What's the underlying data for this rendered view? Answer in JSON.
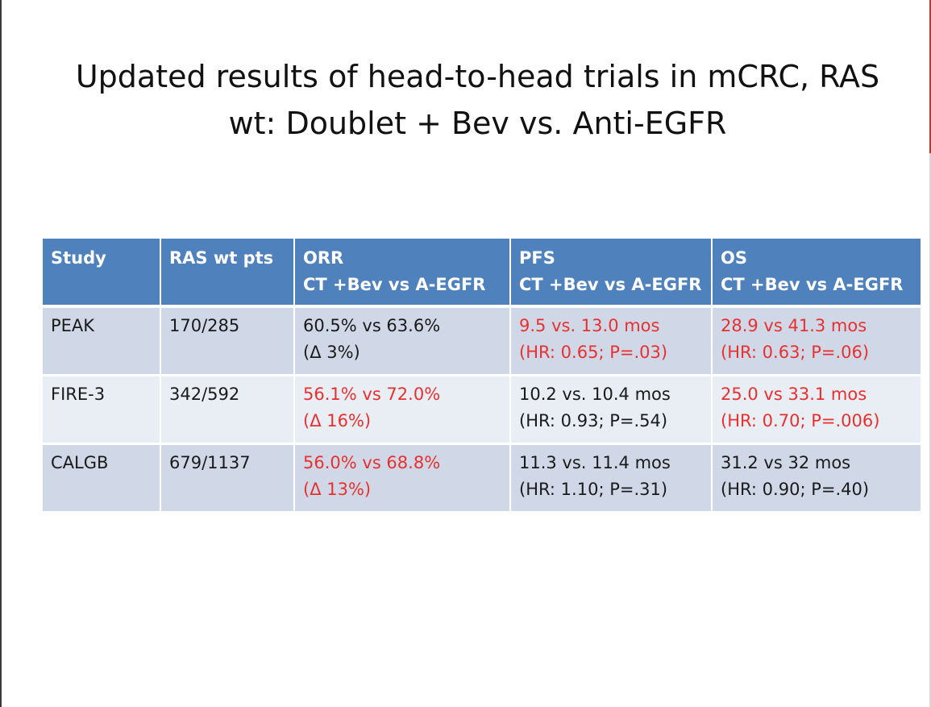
{
  "slide": {
    "title_line1": "Updated results of head-to-head trials in mCRC, RAS",
    "title_line2": "wt: Doublet + Bev vs. Anti-EGFR"
  },
  "table": {
    "headers": [
      {
        "main": "Study",
        "sub": ""
      },
      {
        "main": "RAS wt pts",
        "sub": ""
      },
      {
        "main": "ORR",
        "sub": "CT +Bev vs A-EGFR"
      },
      {
        "main": "PFS",
        "sub": "CT +Bev vs A-EGFR"
      },
      {
        "main": "OS",
        "sub": "CT +Bev vs A-EGFR"
      }
    ],
    "rows": [
      {
        "study": "PEAK",
        "pts": "170/285",
        "orr": [
          "60.5% vs 63.6%",
          "(Δ 3%)"
        ],
        "pfs": [
          "9.5 vs. 13.0 mos",
          "(HR: 0.65; P=.03)"
        ],
        "os": [
          "28.9 vs 41.3 mos",
          "(HR: 0.63; P=.06)"
        ]
      },
      {
        "study": "FIRE-3",
        "pts": "342/592",
        "orr": [
          "56.1% vs 72.0%",
          "(Δ 16%)"
        ],
        "pfs": [
          "10.2 vs. 10.4 mos",
          "(HR: 0.93; P=.54)"
        ],
        "os": [
          "25.0 vs 33.1 mos",
          "(HR: 0.70; P=.006)"
        ]
      },
      {
        "study": "CALGB",
        "pts": "679/1137",
        "orr": [
          "56.0% vs 68.8%",
          "(Δ 13%)"
        ],
        "pfs": [
          "11.3 vs. 11.4 mos",
          "(HR: 1.10; P=.31)"
        ],
        "os": [
          "31.2 vs 32 mos",
          "(HR: 0.90; P=.40)"
        ]
      }
    ]
  },
  "colors": {
    "header_bg": "#4f81bd",
    "row_odd_bg": "#d0d8e8",
    "row_even_bg": "#e9edf4",
    "significant_text": "#e8312f"
  }
}
